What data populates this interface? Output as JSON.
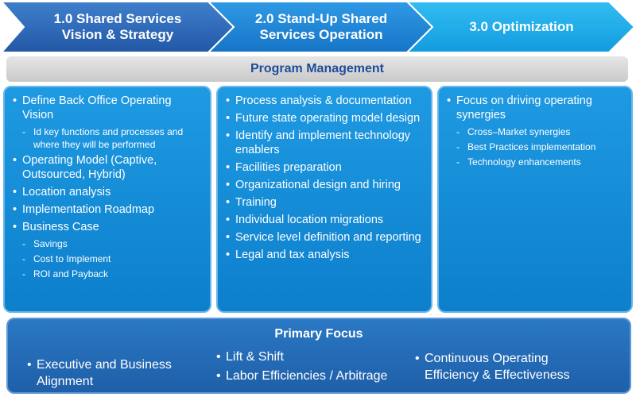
{
  "phases": [
    {
      "title": "1.0 Shared Services\nVision & Strategy"
    },
    {
      "title": "2.0 Stand-Up Shared\nServices Operation"
    },
    {
      "title": "3.0 Optimization"
    }
  ],
  "program_management": "Program Management",
  "columns": [
    {
      "items": [
        {
          "text": "Define Back Office Operating Vision",
          "sub": [
            "Id key functions and processes and where they will be performed"
          ]
        },
        {
          "text": "Operating Model (Captive, Outsourced, Hybrid)",
          "sub": []
        },
        {
          "text": "Location analysis",
          "sub": []
        },
        {
          "text": "Implementation Roadmap",
          "sub": []
        },
        {
          "text": "Business Case",
          "sub": [
            "Savings",
            "Cost to Implement",
            "ROI and Payback"
          ]
        }
      ]
    },
    {
      "items": [
        {
          "text": "Process analysis & documentation",
          "sub": []
        },
        {
          "text": "Future state operating model design",
          "sub": []
        },
        {
          "text": "Identify and implement technology enablers",
          "sub": []
        },
        {
          "text": "Facilities preparation",
          "sub": []
        },
        {
          "text": "Organizational design and hiring",
          "sub": []
        },
        {
          "text": "Training",
          "sub": []
        },
        {
          "text": "Individual location migrations",
          "sub": []
        },
        {
          "text": "Service level definition and reporting",
          "sub": []
        },
        {
          "text": "Legal and tax analysis",
          "sub": []
        }
      ]
    },
    {
      "items": [
        {
          "text": "Focus on driving operating synergies",
          "sub": [
            "Cross–Market synergies",
            "Best Practices implementation",
            "Technology enhancements"
          ]
        }
      ]
    }
  ],
  "primary_focus": {
    "title": "Primary Focus",
    "items": [
      "Executive and Business Alignment",
      "Lift & Shift",
      "Labor Efficiencies / Arbitrage",
      "Continuous Operating Efficiency & Effectiveness"
    ]
  },
  "colors": {
    "chevron_1": "#2a67b8",
    "chevron_2": "#1d88d6",
    "chevron_3": "#17a9ea",
    "phase_box": "#1593dc",
    "program_management_text": "#1f4d99",
    "primary_focus_box": "#2568b4"
  }
}
